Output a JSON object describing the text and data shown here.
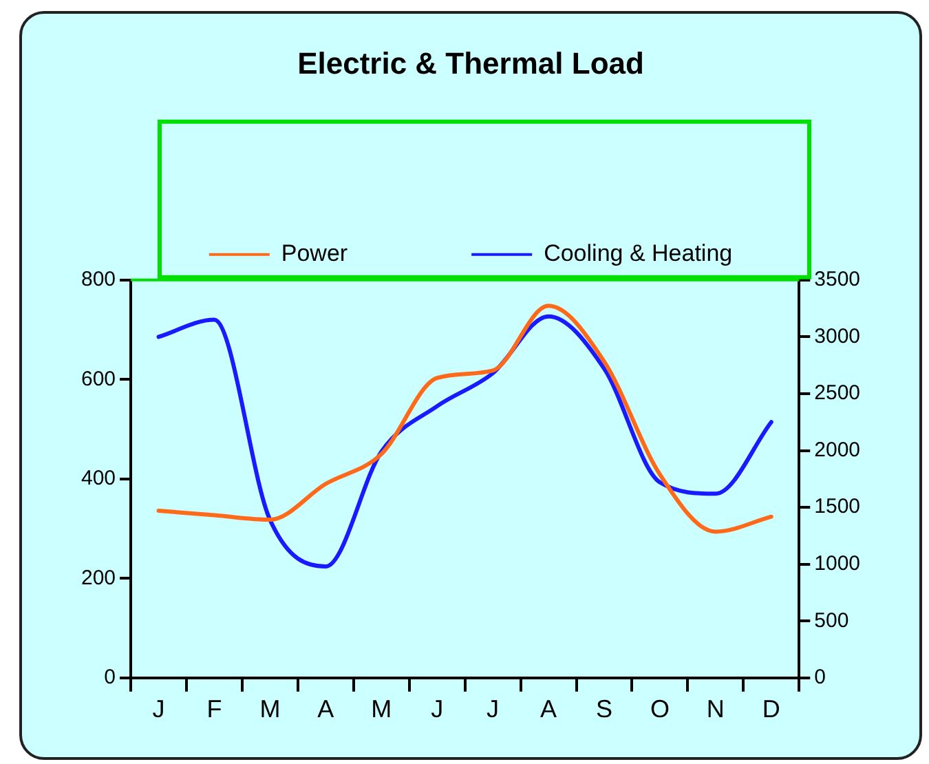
{
  "chart_data": {
    "type": "line",
    "title": "Electric & Thermal Load",
    "categories": [
      "J",
      "F",
      "M",
      "A",
      "M",
      "J",
      "J",
      "A",
      "S",
      "O",
      "N",
      "D"
    ],
    "series": [
      {
        "name": "Power",
        "color": "#ff6a1a",
        "values": [
          336,
          327,
          318,
          390,
          450,
          603,
          618,
          748,
          636,
          409,
          294,
          324
        ]
      },
      {
        "name": "Cooling & Heating",
        "color": "#1a1aff",
        "axis": "y2",
        "values": [
          3000,
          3150,
          1390,
          980,
          1990,
          2390,
          2680,
          3180,
          2720,
          1720,
          1620,
          2250
        ]
      }
    ],
    "ylim": [
      0,
      800
    ],
    "yticks": [
      0,
      200,
      400,
      600,
      800
    ],
    "y2lim": [
      0,
      3500
    ],
    "y2ticks": [
      0,
      500,
      1000,
      1500,
      2000,
      2500,
      3000,
      3500
    ],
    "grid": false,
    "legend": "top",
    "marker": "none",
    "line_style": "solid"
  }
}
